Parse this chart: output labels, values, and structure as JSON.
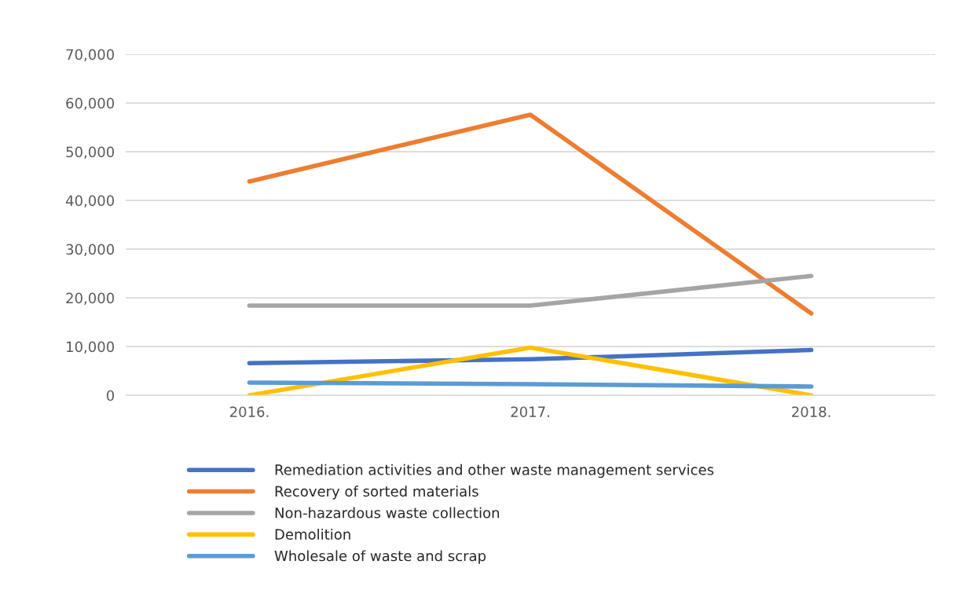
{
  "chart_data": {
    "type": "line",
    "categories": [
      "2016.",
      "2017.",
      "2018."
    ],
    "series": [
      {
        "name": "Remediation activities and other waste management services",
        "color": "#4472c4",
        "values": [
          6600,
          7400,
          9300
        ]
      },
      {
        "name": "Recovery of sorted materials",
        "color": "#ed7d31",
        "values": [
          43900,
          57600,
          16800
        ]
      },
      {
        "name": "Non-hazardous waste collection",
        "color": "#a5a5a5",
        "values": [
          18400,
          18400,
          24500
        ]
      },
      {
        "name": "Demolition",
        "color": "#ffc000",
        "values": [
          0,
          9800,
          0
        ]
      },
      {
        "name": "Wholesale of waste and scrap",
        "color": "#5b9bd5",
        "values": [
          2600,
          2300,
          1800
        ]
      }
    ],
    "ylim": [
      0,
      70000
    ],
    "yticks": [
      {
        "value": 0,
        "label": "0"
      },
      {
        "value": 10000,
        "label": "10,000"
      },
      {
        "value": 20000,
        "label": "20,000"
      },
      {
        "value": 30000,
        "label": "30,000"
      },
      {
        "value": 40000,
        "label": "40,000"
      },
      {
        "value": 50000,
        "label": "50,000"
      },
      {
        "value": 60000,
        "label": "60,000"
      },
      {
        "value": 70000,
        "label": "70,000"
      }
    ],
    "grid": "y",
    "legend": "bottom",
    "marker": "none",
    "line_style": "solid"
  }
}
